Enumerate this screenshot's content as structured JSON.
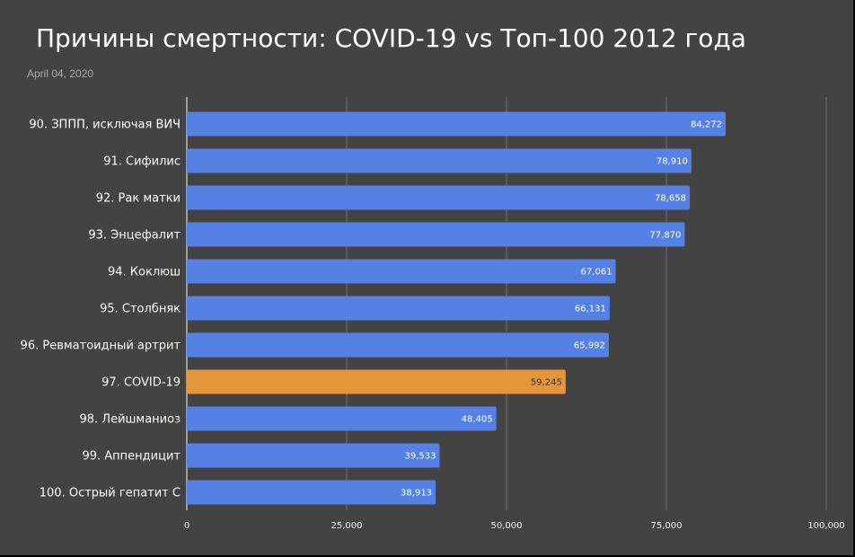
{
  "header": {
    "title": "Причины смертности: COVID-19 vs Топ-100 2012 года",
    "date": "April 04, 2020"
  },
  "colors": {
    "background": "#434343",
    "bar_default": "#5580e4",
    "bar_highlight": "#e6963a",
    "gridline": "#6f6f6f",
    "axis": "#bbbbbb",
    "text": "#ffffff",
    "highlight_label_text": "#333333"
  },
  "chart_data": {
    "type": "bar",
    "orientation": "horizontal",
    "title": "Причины смертности: COVID-19 vs Топ-100 2012 года",
    "xlabel": "",
    "ylabel": "",
    "categories": [
      "90. ЗППП, исключая ВИЧ",
      "91. Сифилис",
      "92. Рак матки",
      "93. Энцефалит",
      "94. Коклюш",
      "95. Столбняк",
      "96. Ревматоидный артрит",
      "97. COVID-19",
      "98. Лейшманиоз",
      "99. Аппендицит",
      "100. Острый гепатит С"
    ],
    "values": [
      84272,
      78910,
      78658,
      77870,
      67061,
      66131,
      65992,
      59245,
      48405,
      39533,
      38913
    ],
    "value_labels": [
      "84,272",
      "78,910",
      "78,658",
      "77,870",
      "67,061",
      "66,131",
      "65,992",
      "59,245",
      "48,405",
      "39,533",
      "38,913"
    ],
    "highlight": "97. COVID-19",
    "xlim": [
      0,
      100000
    ],
    "xticks": [
      0,
      25000,
      50000,
      75000,
      100000
    ],
    "xtick_labels": [
      "0",
      "25,000",
      "50,000",
      "75,000",
      "100,000"
    ],
    "grid": true,
    "legend": "none"
  }
}
